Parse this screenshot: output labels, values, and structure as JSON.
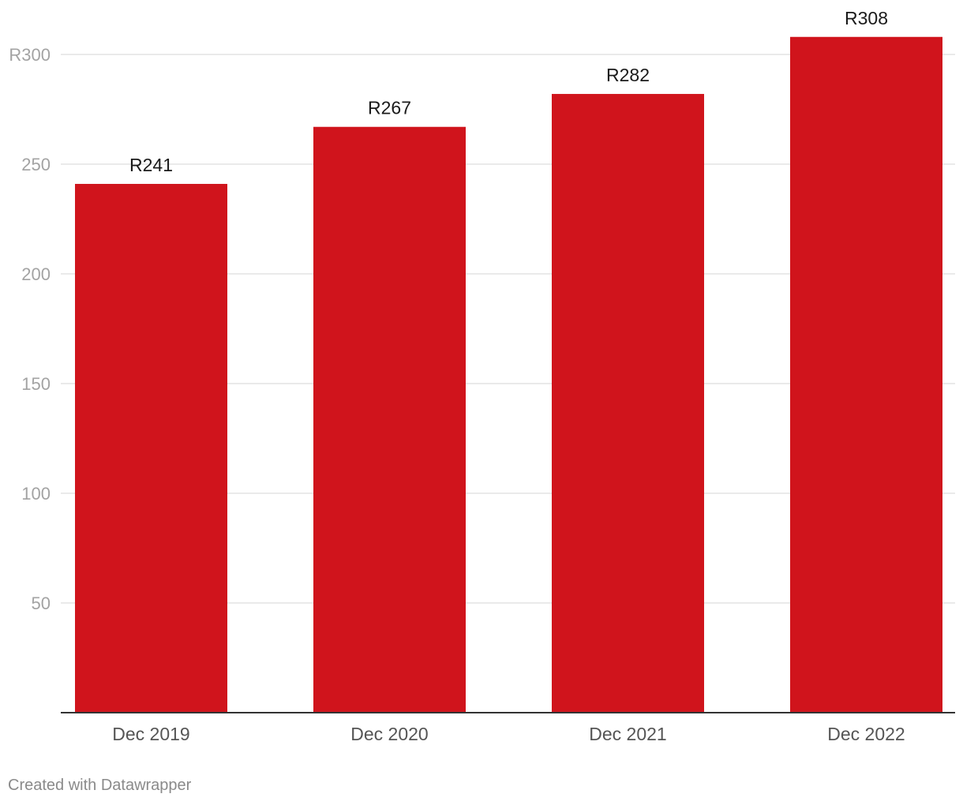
{
  "chart_data": {
    "type": "bar",
    "categories": [
      "Dec 2019",
      "Dec 2020",
      "Dec 2021",
      "Dec 2022"
    ],
    "values": [
      241,
      267,
      282,
      308
    ],
    "value_labels": [
      "R241",
      "R267",
      "R282",
      "R308"
    ],
    "y_ticks": [
      {
        "value": 50,
        "label": "50"
      },
      {
        "value": 100,
        "label": "100"
      },
      {
        "value": 150,
        "label": "150"
      },
      {
        "value": 200,
        "label": "200"
      },
      {
        "value": 250,
        "label": "250"
      },
      {
        "value": 300,
        "label": "R300"
      }
    ],
    "ylim": [
      0,
      320
    ],
    "grid": true,
    "colors": {
      "bar": "#d0141c",
      "grid": "#e3e3e3",
      "baseline": "#333333"
    }
  },
  "footer": {
    "credit": "Created with Datawrapper"
  }
}
